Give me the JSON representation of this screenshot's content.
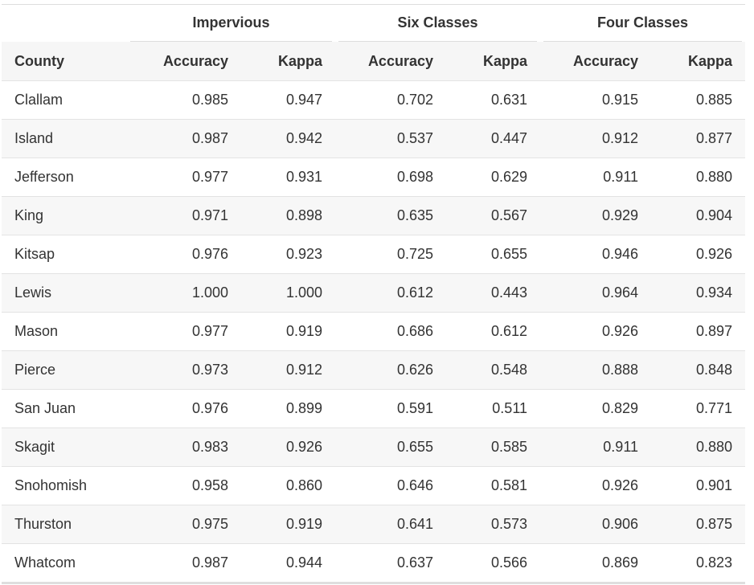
{
  "groups": {
    "impervious": "Impervious",
    "six_classes": "Six Classes",
    "four_classes": "Four Classes"
  },
  "columns": {
    "county": "County",
    "accuracy": "Accuracy",
    "kappa": "Kappa"
  },
  "rows": [
    {
      "county": "Clallam",
      "imp_acc": "0.985",
      "imp_kappa": "0.947",
      "six_acc": "0.702",
      "six_kappa": "0.631",
      "four_acc": "0.915",
      "four_kappa": "0.885"
    },
    {
      "county": "Island",
      "imp_acc": "0.987",
      "imp_kappa": "0.942",
      "six_acc": "0.537",
      "six_kappa": "0.447",
      "four_acc": "0.912",
      "four_kappa": "0.877"
    },
    {
      "county": "Jefferson",
      "imp_acc": "0.977",
      "imp_kappa": "0.931",
      "six_acc": "0.698",
      "six_kappa": "0.629",
      "four_acc": "0.911",
      "four_kappa": "0.880"
    },
    {
      "county": "King",
      "imp_acc": "0.971",
      "imp_kappa": "0.898",
      "six_acc": "0.635",
      "six_kappa": "0.567",
      "four_acc": "0.929",
      "four_kappa": "0.904"
    },
    {
      "county": "Kitsap",
      "imp_acc": "0.976",
      "imp_kappa": "0.923",
      "six_acc": "0.725",
      "six_kappa": "0.655",
      "four_acc": "0.946",
      "four_kappa": "0.926"
    },
    {
      "county": "Lewis",
      "imp_acc": "1.000",
      "imp_kappa": "1.000",
      "six_acc": "0.612",
      "six_kappa": "0.443",
      "four_acc": "0.964",
      "four_kappa": "0.934"
    },
    {
      "county": "Mason",
      "imp_acc": "0.977",
      "imp_kappa": "0.919",
      "six_acc": "0.686",
      "six_kappa": "0.612",
      "four_acc": "0.926",
      "four_kappa": "0.897"
    },
    {
      "county": "Pierce",
      "imp_acc": "0.973",
      "imp_kappa": "0.912",
      "six_acc": "0.626",
      "six_kappa": "0.548",
      "four_acc": "0.888",
      "four_kappa": "0.848"
    },
    {
      "county": "San Juan",
      "imp_acc": "0.976",
      "imp_kappa": "0.899",
      "six_acc": "0.591",
      "six_kappa": "0.511",
      "four_acc": "0.829",
      "four_kappa": "0.771"
    },
    {
      "county": "Skagit",
      "imp_acc": "0.983",
      "imp_kappa": "0.926",
      "six_acc": "0.655",
      "six_kappa": "0.585",
      "four_acc": "0.911",
      "four_kappa": "0.880"
    },
    {
      "county": "Snohomish",
      "imp_acc": "0.958",
      "imp_kappa": "0.860",
      "six_acc": "0.646",
      "six_kappa": "0.581",
      "four_acc": "0.926",
      "four_kappa": "0.901"
    },
    {
      "county": "Thurston",
      "imp_acc": "0.975",
      "imp_kappa": "0.919",
      "six_acc": "0.641",
      "six_kappa": "0.573",
      "four_acc": "0.906",
      "four_kappa": "0.875"
    },
    {
      "county": "Whatcom",
      "imp_acc": "0.987",
      "imp_kappa": "0.944",
      "six_acc": "0.637",
      "six_kappa": "0.566",
      "four_acc": "0.869",
      "four_kappa": "0.823"
    }
  ]
}
